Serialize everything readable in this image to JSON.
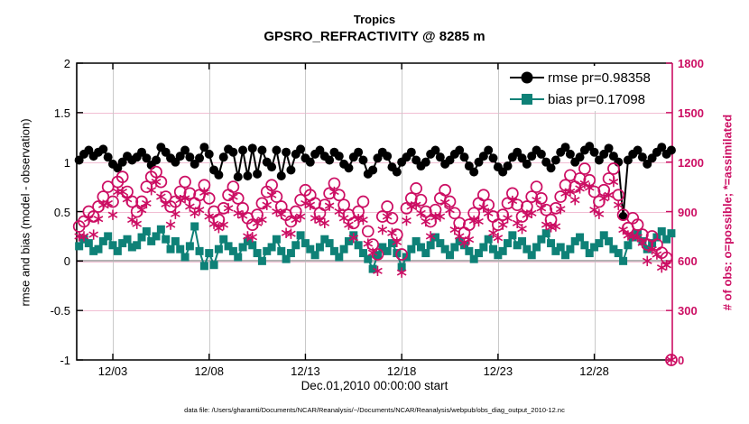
{
  "title": {
    "line1": "Tropics",
    "line2": "GPSRO_REFRACTIVITY @ 8285 m"
  },
  "caption": "data file: /Users/gharamti/Documents/NCAR/Reanalysis/~/Documents/NCAR/Reanalysis/webpub/obs_diag_output_2010-12.nc",
  "chart_data": {
    "type": "line",
    "title": "Tropics",
    "subtitle": "GPSRO_REFRACTIVITY @ 8285 m",
    "xlabel": "Dec.01,2010 00:00:00 start",
    "x_tick_labels": [
      "12/03",
      "12/08",
      "12/13",
      "12/18",
      "12/23",
      "12/28"
    ],
    "x_tick_days": [
      2,
      7,
      12,
      17,
      22,
      27
    ],
    "x_range_days": [
      0.125,
      31.05
    ],
    "left_axis": {
      "label": "rmse and bias (model - observation)",
      "tick_labels": [
        "2",
        "1.5",
        "1",
        "0.5",
        "0",
        "-0.5",
        "-1"
      ],
      "tick_values": [
        2,
        1.5,
        1,
        0.5,
        0,
        -0.5,
        -1
      ],
      "range": [
        -1,
        2
      ],
      "color": "#000000"
    },
    "right_axis": {
      "label": "# of obs: o=possible; *=assimilated",
      "tick_labels": [
        "1800",
        "1500",
        "1200",
        "900",
        "600",
        "300",
        "0"
      ],
      "tick_values": [
        1800,
        1500,
        1200,
        900,
        600,
        300,
        0
      ],
      "range": [
        0,
        1800
      ],
      "color": "#cc0e63"
    },
    "grid": {
      "vertical_color": "#c9c9c9",
      "horizontal_color": "#f1bed3",
      "zero_line_color": "#b0b0b0",
      "grid_on": true
    },
    "legend": {
      "position": "top-right",
      "entries": [
        {
          "label": "rmse pr=0.98358",
          "series": "rmse"
        },
        {
          "label": "bias pr=0.17098",
          "series": "bias"
        }
      ]
    },
    "time": {
      "start_day": 0.25,
      "step_day": 0.25,
      "count": 124
    },
    "series": [
      {
        "name": "rmse",
        "axis": "left",
        "marker": "filled-circle",
        "line": true,
        "color": "#000000",
        "values": [
          1.02,
          1.08,
          1.12,
          1.06,
          1.1,
          1.13,
          1.05,
          0.98,
          0.94,
          1.0,
          1.06,
          1.02,
          1.05,
          1.1,
          1.04,
          0.97,
          1.02,
          1.15,
          1.1,
          1.04,
          1.0,
          1.06,
          1.12,
          1.05,
          0.98,
          1.04,
          1.15,
          1.08,
          0.92,
          0.87,
          1.05,
          1.13,
          1.1,
          0.85,
          1.12,
          0.86,
          1.14,
          0.88,
          1.12,
          1.0,
          0.95,
          1.12,
          0.86,
          1.1,
          0.92,
          1.08,
          1.13,
          1.04,
          1.0,
          1.08,
          1.12,
          1.06,
          1.02,
          1.1,
          1.06,
          0.98,
          0.94,
          1.05,
          1.1,
          1.02,
          0.88,
          0.92,
          1.04,
          1.1,
          1.06,
          0.95,
          0.9,
          1.0,
          1.05,
          1.1,
          1.02,
          0.96,
          1.0,
          1.08,
          1.12,
          1.05,
          0.98,
          1.02,
          1.08,
          1.12,
          1.05,
          0.96,
          0.9,
          1.0,
          1.06,
          1.12,
          1.04,
          0.95,
          0.9,
          0.96,
          1.05,
          1.1,
          1.04,
          0.98,
          1.06,
          1.12,
          1.08,
          1.0,
          0.94,
          1.02,
          1.1,
          1.15,
          1.08,
          1.0,
          1.05,
          1.12,
          1.16,
          1.1,
          1.02,
          1.08,
          1.14,
          1.06,
          1.0,
          0.45,
          1.02,
          1.08,
          1.12,
          1.05,
          0.98,
          1.04,
          1.1,
          1.15,
          1.08,
          1.12
        ]
      },
      {
        "name": "bias",
        "axis": "left",
        "marker": "filled-square",
        "line": true,
        "color": "#0e8177",
        "values": [
          0.15,
          0.22,
          0.18,
          0.1,
          0.12,
          0.2,
          0.25,
          0.16,
          0.1,
          0.18,
          0.22,
          0.14,
          0.16,
          0.24,
          0.3,
          0.2,
          0.25,
          0.32,
          0.22,
          0.12,
          0.2,
          0.12,
          0.04,
          0.15,
          0.35,
          0.1,
          -0.05,
          0.08,
          -0.04,
          0.12,
          0.22,
          0.15,
          0.1,
          0.04,
          0.14,
          0.2,
          0.16,
          0.08,
          0.0,
          0.1,
          0.14,
          0.22,
          0.1,
          0.02,
          0.08,
          0.16,
          0.26,
          0.18,
          0.12,
          0.06,
          0.14,
          0.22,
          0.18,
          0.1,
          0.04,
          0.12,
          0.2,
          0.26,
          0.16,
          0.08,
          0.02,
          -0.08,
          0.06,
          0.14,
          0.1,
          0.18,
          0.08,
          -0.06,
          0.04,
          0.12,
          0.2,
          0.14,
          0.08,
          0.16,
          0.24,
          0.18,
          0.12,
          0.06,
          0.14,
          0.2,
          0.16,
          0.1,
          0.02,
          0.08,
          0.14,
          0.22,
          0.12,
          0.06,
          0.1,
          0.18,
          0.26,
          0.16,
          0.2,
          0.12,
          0.06,
          0.14,
          0.22,
          0.28,
          0.18,
          0.1,
          0.14,
          0.06,
          0.12,
          0.2,
          0.24,
          0.16,
          0.08,
          0.14,
          0.18,
          0.26,
          0.2,
          0.12,
          0.08,
          0.0,
          0.16,
          0.24,
          0.28,
          0.2,
          0.12,
          0.18,
          0.24,
          0.3,
          0.22,
          0.28
        ]
      },
      {
        "name": "possible",
        "axis": "right",
        "marker": "open-circle",
        "line": false,
        "color": "#cc0e63",
        "values": [
          810,
          840,
          900,
          870,
          930,
          990,
          1050,
          960,
          1080,
          1110,
          1020,
          960,
          900,
          960,
          1050,
          1110,
          1140,
          1080,
          990,
          930,
          960,
          1020,
          1080,
          1010,
          950,
          1000,
          1060,
          980,
          900,
          850,
          920,
          1000,
          1050,
          980,
          920,
          860,
          820,
          880,
          950,
          1020,
          1060,
          990,
          930,
          880,
          840,
          900,
          970,
          1030,
          1000,
          950,
          890,
          940,
          1010,
          1070,
          1000,
          940,
          880,
          830,
          900,
          960,
          780,
          700,
          640,
          870,
          930,
          860,
          760,
          640,
          920,
          980,
          1040,
          970,
          900,
          840,
          910,
          980,
          1030,
          960,
          890,
          830,
          770,
          820,
          890,
          950,
          1000,
          940,
          870,
          820,
          880,
          950,
          1010,
          940,
          870,
          930,
          990,
          1050,
          980,
          910,
          850,
          920,
          990,
          1060,
          1120,
          1050,
          1100,
          1160,
          1090,
          1020,
          960,
          1030,
          1100,
          1160,
          1000,
          880,
          800,
          860,
          820,
          760,
          700,
          750,
          700,
          650,
          620,
          0
        ]
      },
      {
        "name": "assimilated",
        "axis": "right",
        "marker": "asterisk",
        "line": false,
        "color": "#cc0e63",
        "values": [
          750,
          750,
          855,
          760,
          855,
          940,
          950,
          880,
          1020,
          1020,
          975,
          850,
          825,
          910,
          950,
          1030,
          1080,
          990,
          945,
          820,
          885,
          970,
          980,
          930,
          890,
          910,
          1015,
          870,
          825,
          800,
          820,
          920,
          990,
          890,
          875,
          750,
          745,
          830,
          850,
          940,
          1000,
          900,
          885,
          770,
          765,
          850,
          870,
          950,
          940,
          860,
          845,
          830,
          935,
          1020,
          900,
          860,
          820,
          740,
          855,
          850,
          705,
          650,
          540,
          790,
          870,
          770,
          715,
          530,
          845,
          930,
          940,
          890,
          840,
          750,
          865,
          870,
          955,
          910,
          790,
          750,
          710,
          730,
          845,
          840,
          925,
          890,
          770,
          740,
          820,
          860,
          965,
          830,
          795,
          880,
          890,
          970,
          920,
          820,
          805,
          810,
          915,
          1010,
          1020,
          970,
          1040,
          1070,
          1045,
          910,
          885,
          980,
          1000,
          1080,
          940,
          790,
          755,
          750,
          745,
          710,
          600,
          670,
          640,
          560,
          575,
          0
        ]
      }
    ]
  }
}
